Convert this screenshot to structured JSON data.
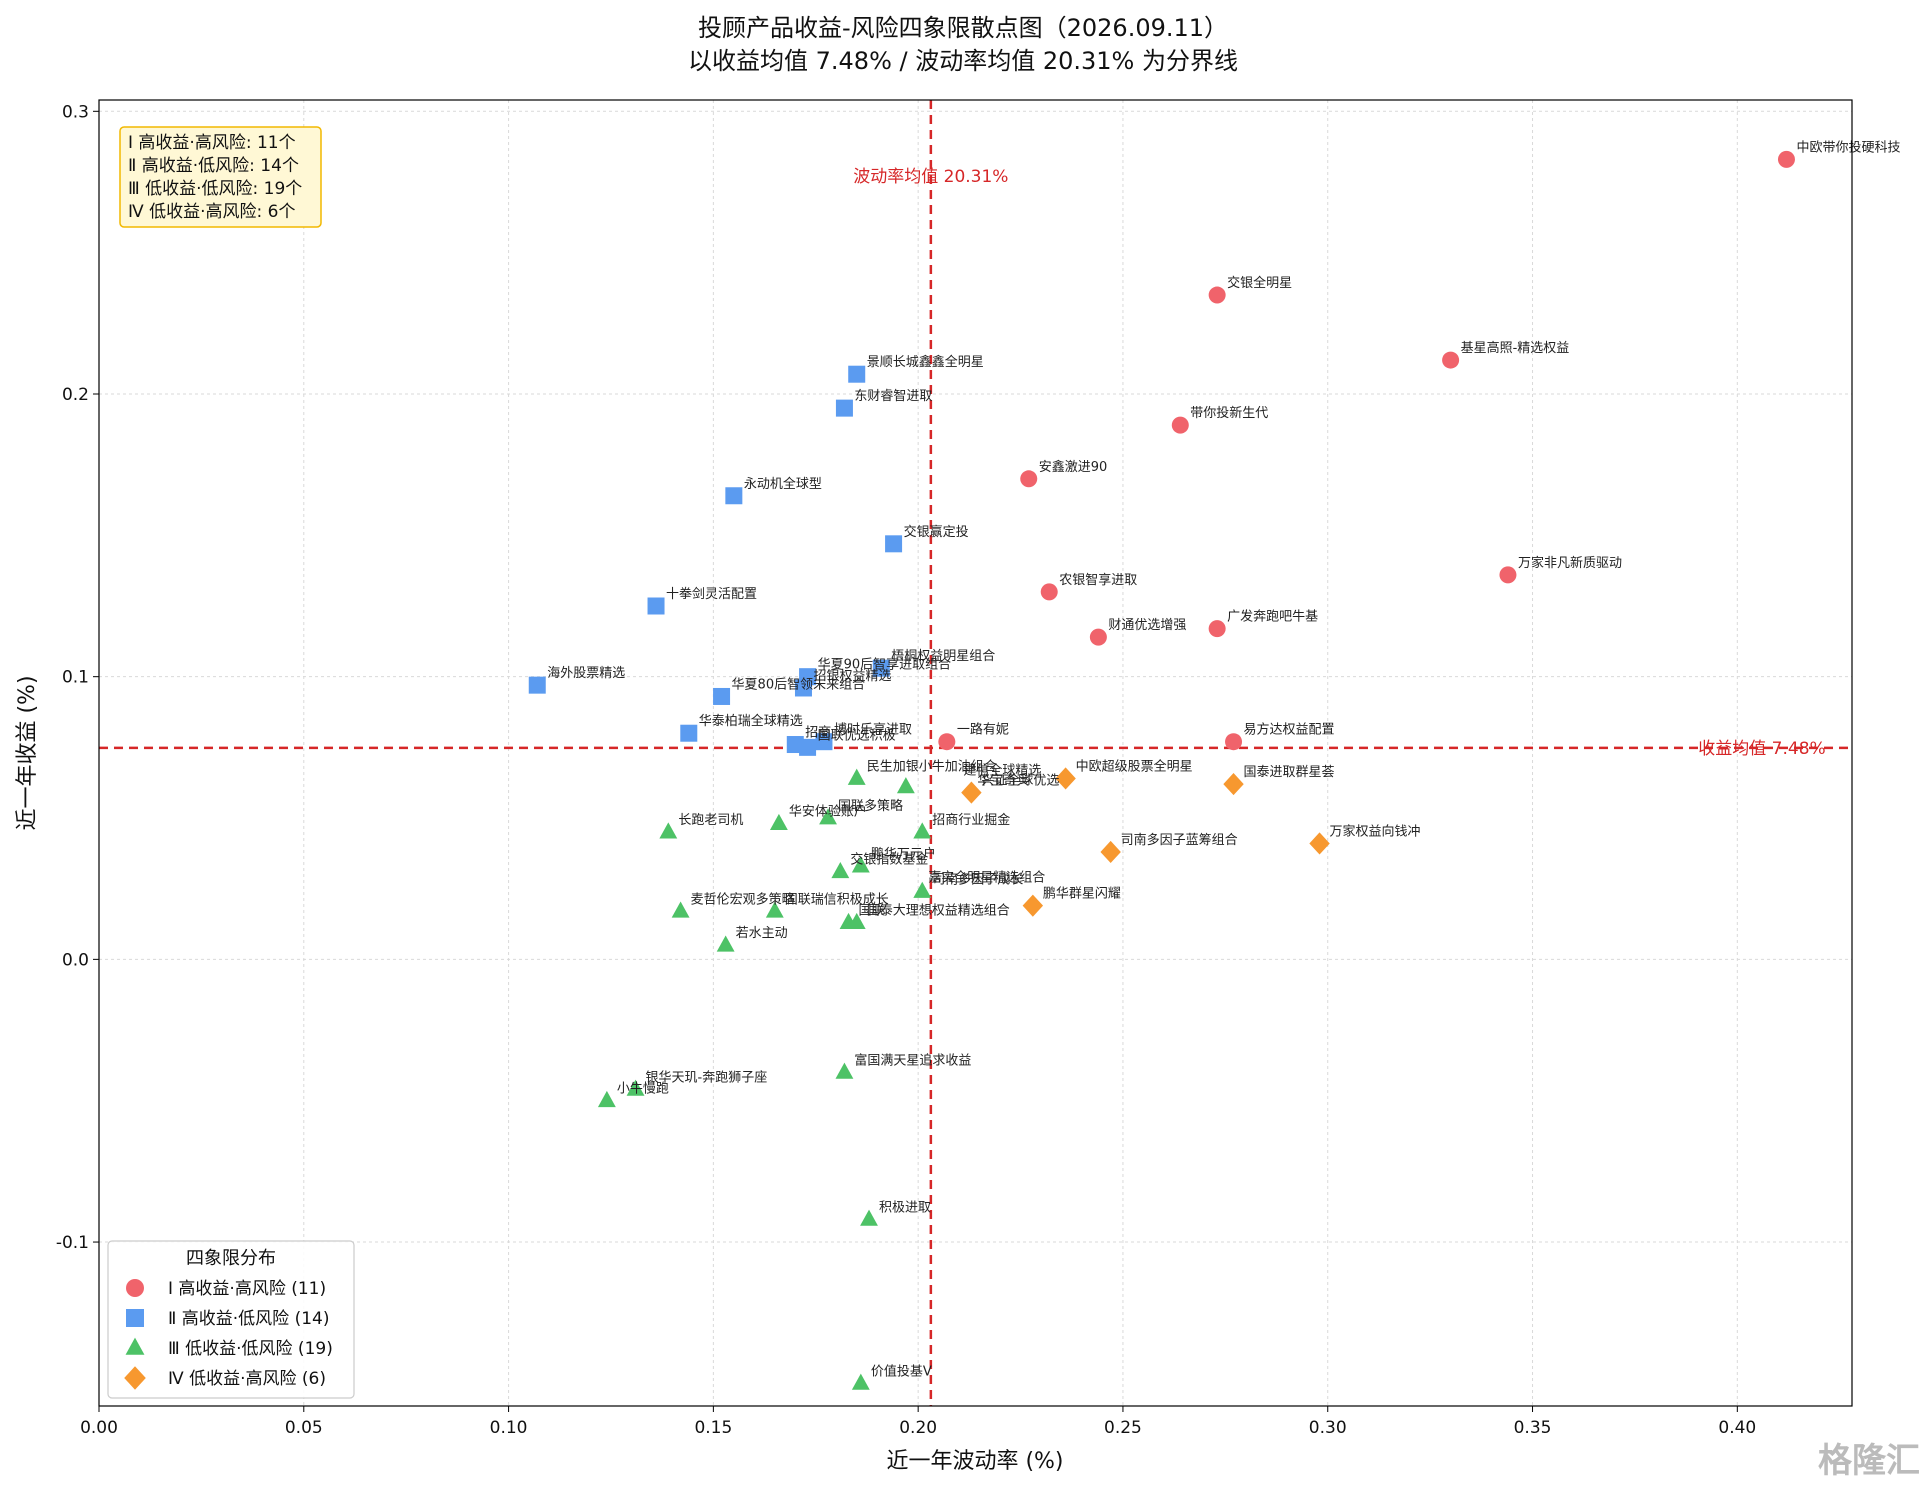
{
  "chart_data": {
    "type": "scatter",
    "title": "投顾产品收益-风险四象限散点图（2026.09.11）",
    "subtitle": "以收益均值 7.48% / 波动率均值 20.31% 为分界线",
    "xlabel": "近一年波动率 (%)",
    "ylabel": "近一年收益 (%)",
    "xlim": [
      0.0,
      0.428
    ],
    "ylim": [
      -0.158,
      0.304
    ],
    "xticks": [
      "0.00",
      "0.05",
      "0.10",
      "0.15",
      "0.20",
      "0.25",
      "0.30",
      "0.35",
      "0.40"
    ],
    "yticks": [
      "-0.1",
      "0.0",
      "0.1",
      "0.2",
      "0.3"
    ],
    "grid": true,
    "mean_x": 0.2031,
    "mean_y": 0.0748,
    "mean_x_label": "波动率均值 20.31%",
    "mean_y_label": "收益均值 7.48%",
    "mean_line_color": "#d62728",
    "stats_box": [
      "Ⅰ 高收益·高风险: 11个",
      "Ⅱ 高收益·低风险: 14个",
      "Ⅲ 低收益·低风险: 19个",
      "Ⅳ 低收益·高风险: 6个"
    ],
    "legend_title": "四象限分布",
    "legend_position": "lower-left",
    "series": [
      {
        "name": "Ⅰ 高收益·高风险 (11)",
        "marker": "circle",
        "color": "#f0636b",
        "points": [
          {
            "x": 0.412,
            "y": 0.283,
            "label": "中欧带你投硬科技"
          },
          {
            "x": 0.273,
            "y": 0.235,
            "label": "交银全明星"
          },
          {
            "x": 0.33,
            "y": 0.212,
            "label": "基星高照-精选权益"
          },
          {
            "x": 0.264,
            "y": 0.189,
            "label": "带你投新生代"
          },
          {
            "x": 0.227,
            "y": 0.17,
            "label": "安鑫激进90"
          },
          {
            "x": 0.344,
            "y": 0.136,
            "label": "万家非凡新质驱动"
          },
          {
            "x": 0.232,
            "y": 0.13,
            "label": "农银智享进取"
          },
          {
            "x": 0.244,
            "y": 0.114,
            "label": "财通优选增强"
          },
          {
            "x": 0.273,
            "y": 0.117,
            "label": "广发奔跑吧牛基"
          },
          {
            "x": 0.207,
            "y": 0.077,
            "label": "一路有妮"
          },
          {
            "x": 0.277,
            "y": 0.077,
            "label": "易方达权益配置"
          }
        ]
      },
      {
        "name": "Ⅱ 高收益·低风险 (14)",
        "marker": "square",
        "color": "#5b9bf0",
        "points": [
          {
            "x": 0.185,
            "y": 0.207,
            "label": "景顺长城鑫鑫全明星"
          },
          {
            "x": 0.182,
            "y": 0.195,
            "label": "东财睿智进取"
          },
          {
            "x": 0.155,
            "y": 0.164,
            "label": "永动机全球型"
          },
          {
            "x": 0.194,
            "y": 0.147,
            "label": "交银赢定投"
          },
          {
            "x": 0.136,
            "y": 0.125,
            "label": "十拳剑灵活配置"
          },
          {
            "x": 0.107,
            "y": 0.097,
            "label": "海外股票精选"
          },
          {
            "x": 0.191,
            "y": 0.103,
            "label": "梧桐权益明星组合"
          },
          {
            "x": 0.173,
            "y": 0.1,
            "label": "华夏90后智享进取组合"
          },
          {
            "x": 0.172,
            "y": 0.096,
            "label": "招银权益精选"
          },
          {
            "x": 0.152,
            "y": 0.093,
            "label": "华夏80后智领未来组合"
          },
          {
            "x": 0.144,
            "y": 0.08,
            "label": "华泰柏瑞全球精选"
          },
          {
            "x": 0.177,
            "y": 0.077,
            "label": "博时乐享进取"
          },
          {
            "x": 0.17,
            "y": 0.076,
            "label": "招商"
          },
          {
            "x": 0.173,
            "y": 0.075,
            "label": "国联优选积极"
          }
        ]
      },
      {
        "name": "Ⅲ 低收益·低风险 (19)",
        "marker": "triangle",
        "color": "#4dc266",
        "points": [
          {
            "x": 0.185,
            "y": 0.064,
            "label": "民生加银小牛加油组合"
          },
          {
            "x": 0.197,
            "y": 0.061,
            "label": ""
          },
          {
            "x": 0.139,
            "y": 0.045,
            "label": "长跑老司机"
          },
          {
            "x": 0.166,
            "y": 0.048,
            "label": "华安体验账户"
          },
          {
            "x": 0.178,
            "y": 0.05,
            "label": "国联多策略"
          },
          {
            "x": 0.201,
            "y": 0.045,
            "label": "招商行业掘金"
          },
          {
            "x": 0.181,
            "y": 0.031,
            "label": "交银指数基金"
          },
          {
            "x": 0.186,
            "y": 0.033,
            "label": "鹏华万元户"
          },
          {
            "x": 0.201,
            "y": 0.024,
            "label": "司南多因子成长"
          },
          {
            "x": 0.142,
            "y": 0.017,
            "label": "麦哲伦宏观多策略"
          },
          {
            "x": 0.165,
            "y": 0.017,
            "label": "国联瑞信积极成长"
          },
          {
            "x": 0.183,
            "y": 0.013,
            "label": "国联"
          },
          {
            "x": 0.185,
            "y": 0.013,
            "label": "国泰大理想权益精选组合"
          },
          {
            "x": 0.153,
            "y": 0.005,
            "label": "若水主动"
          },
          {
            "x": 0.182,
            "y": -0.04,
            "label": "富国满天星追求收益"
          },
          {
            "x": 0.131,
            "y": -0.046,
            "label": "银华天玑-奔跑狮子座"
          },
          {
            "x": 0.124,
            "y": -0.05,
            "label": "小牛慢跑"
          },
          {
            "x": 0.188,
            "y": -0.092,
            "label": "积极进取"
          },
          {
            "x": 0.186,
            "y": -0.15,
            "label": "价值投基V"
          }
        ]
      },
      {
        "name": "Ⅳ 低收益·高风险 (6)",
        "marker": "diamond",
        "color": "#f7982f",
        "points": [
          {
            "x": 0.236,
            "y": 0.064,
            "label": "中欧超级股票全明星"
          },
          {
            "x": 0.213,
            "y": 0.059,
            "label": "兴证全球优选"
          },
          {
            "x": 0.277,
            "y": 0.062,
            "label": "国泰进取群星荟"
          },
          {
            "x": 0.247,
            "y": 0.038,
            "label": "司南多因子蓝筹组合"
          },
          {
            "x": 0.298,
            "y": 0.041,
            "label": "万家权益向钱冲"
          },
          {
            "x": 0.228,
            "y": 0.019,
            "label": "鹏华群星闪耀"
          }
        ]
      }
    ],
    "extra_labels": [
      {
        "x": 0.213,
        "y": 0.059,
        "label": "建信全球精选",
        "dx": -8,
        "dy": -18
      },
      {
        "x": 0.213,
        "y": 0.059,
        "label": "华宝奇兵",
        "dx": 6,
        "dy": -8
      },
      {
        "x": 0.201,
        "y": 0.024,
        "label": "嘉实全明星精选组合",
        "dx": 6,
        "dy": -10
      }
    ]
  },
  "watermark": "格隆汇"
}
